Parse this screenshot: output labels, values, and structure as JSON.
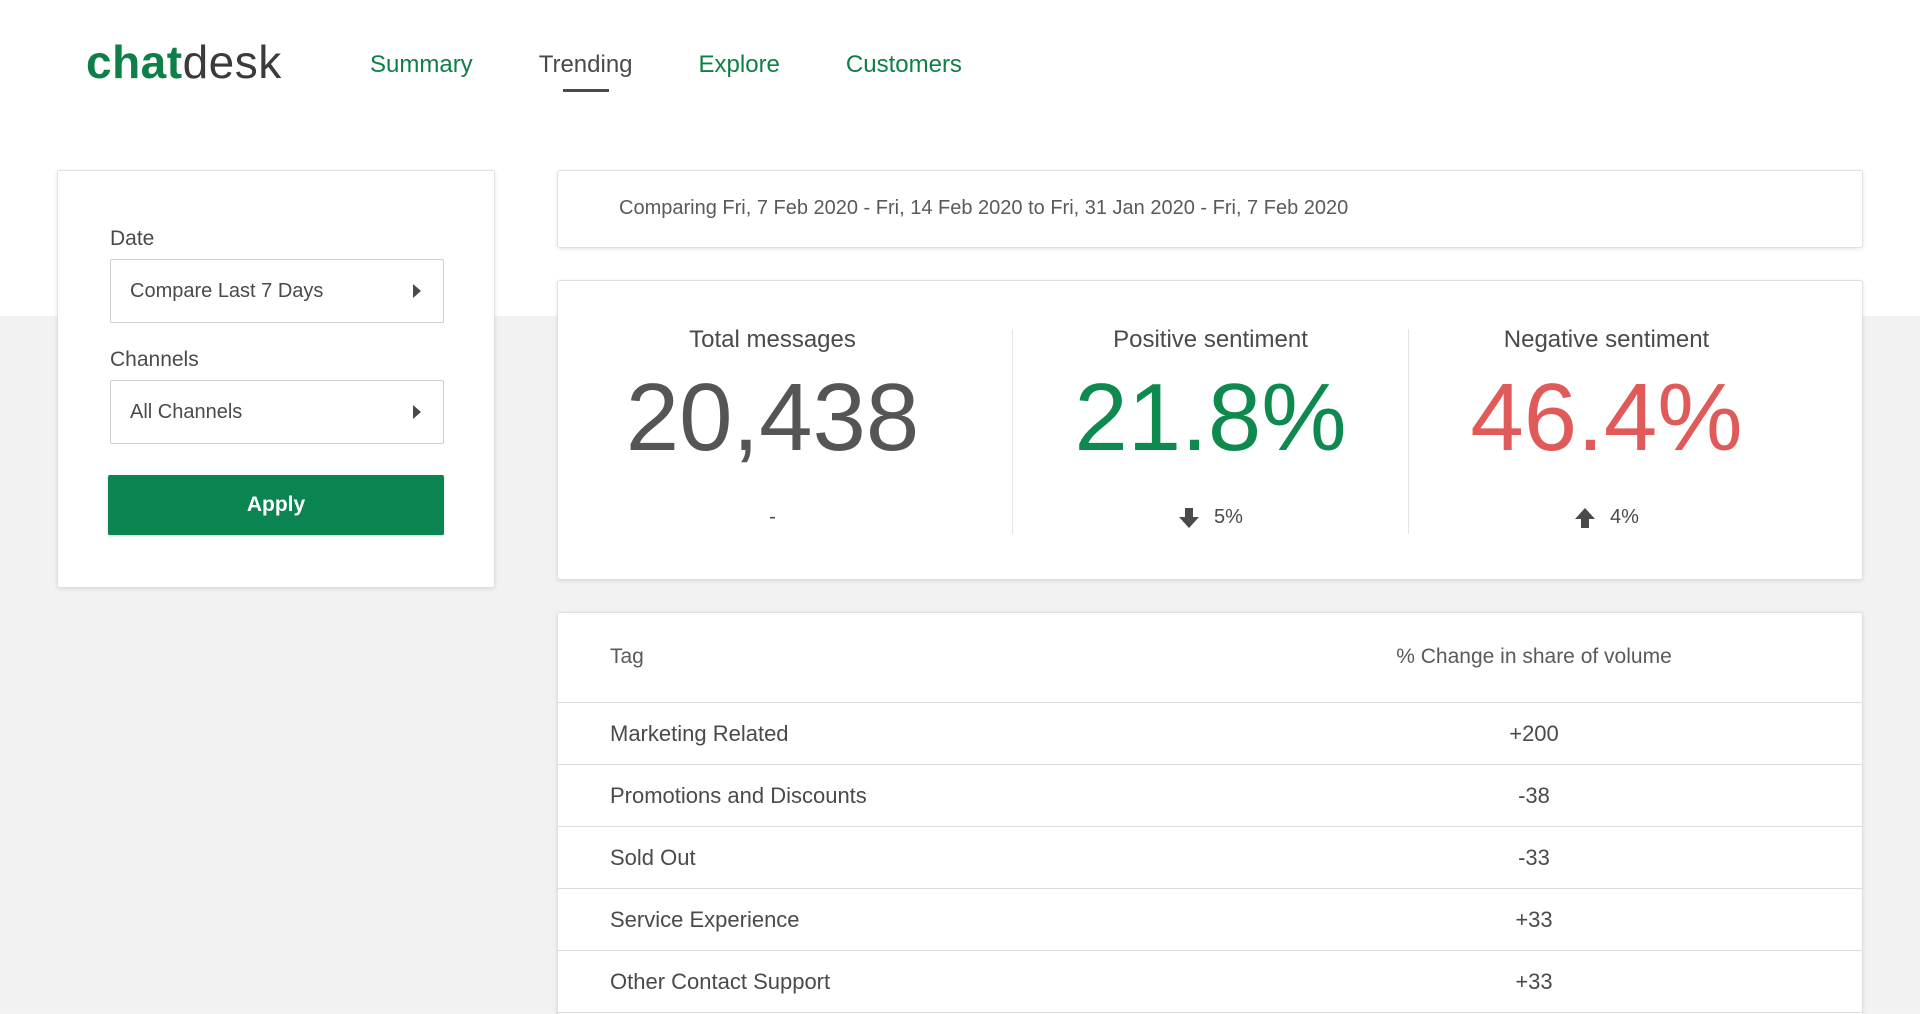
{
  "logo": {
    "part1": "chat",
    "part2": "desk"
  },
  "nav": {
    "tabs": [
      {
        "label": "Summary",
        "active": false
      },
      {
        "label": "Trending",
        "active": true
      },
      {
        "label": "Explore",
        "active": false
      },
      {
        "label": "Customers",
        "active": false
      }
    ]
  },
  "filters": {
    "date_label": "Date",
    "date_value": "Compare Last 7 Days",
    "channels_label": "Channels",
    "channels_value": "All Channels",
    "apply_label": "Apply"
  },
  "comparison": {
    "text": "Comparing Fri, 7 Feb 2020 - Fri, 14 Feb 2020 to Fri, 31 Jan 2020 - Fri, 7 Feb 2020"
  },
  "stats": [
    {
      "title": "Total messages",
      "value": "20,438",
      "change": "-",
      "direction": "none",
      "color": "#555555"
    },
    {
      "title": "Positive sentiment",
      "value": "21.8%",
      "change": "5%",
      "direction": "down",
      "color": "#0e8a4f"
    },
    {
      "title": "Negative sentiment",
      "value": "46.4%",
      "change": "4%",
      "direction": "up",
      "color": "#e05a5a"
    }
  ],
  "table": {
    "col_tag": "Tag",
    "col_change": "% Change in share of volume",
    "rows": [
      {
        "tag": "Marketing Related",
        "change": "+200"
      },
      {
        "tag": "Promotions and Discounts",
        "change": "-38"
      },
      {
        "tag": "Sold Out",
        "change": "-33"
      },
      {
        "tag": "Service Experience",
        "change": "+33"
      },
      {
        "tag": "Other Contact Support",
        "change": "+33"
      }
    ]
  },
  "colors": {
    "brand_green": "#0e7f46",
    "apply_green": "#0a8451",
    "negative_red": "#e05a5a"
  }
}
